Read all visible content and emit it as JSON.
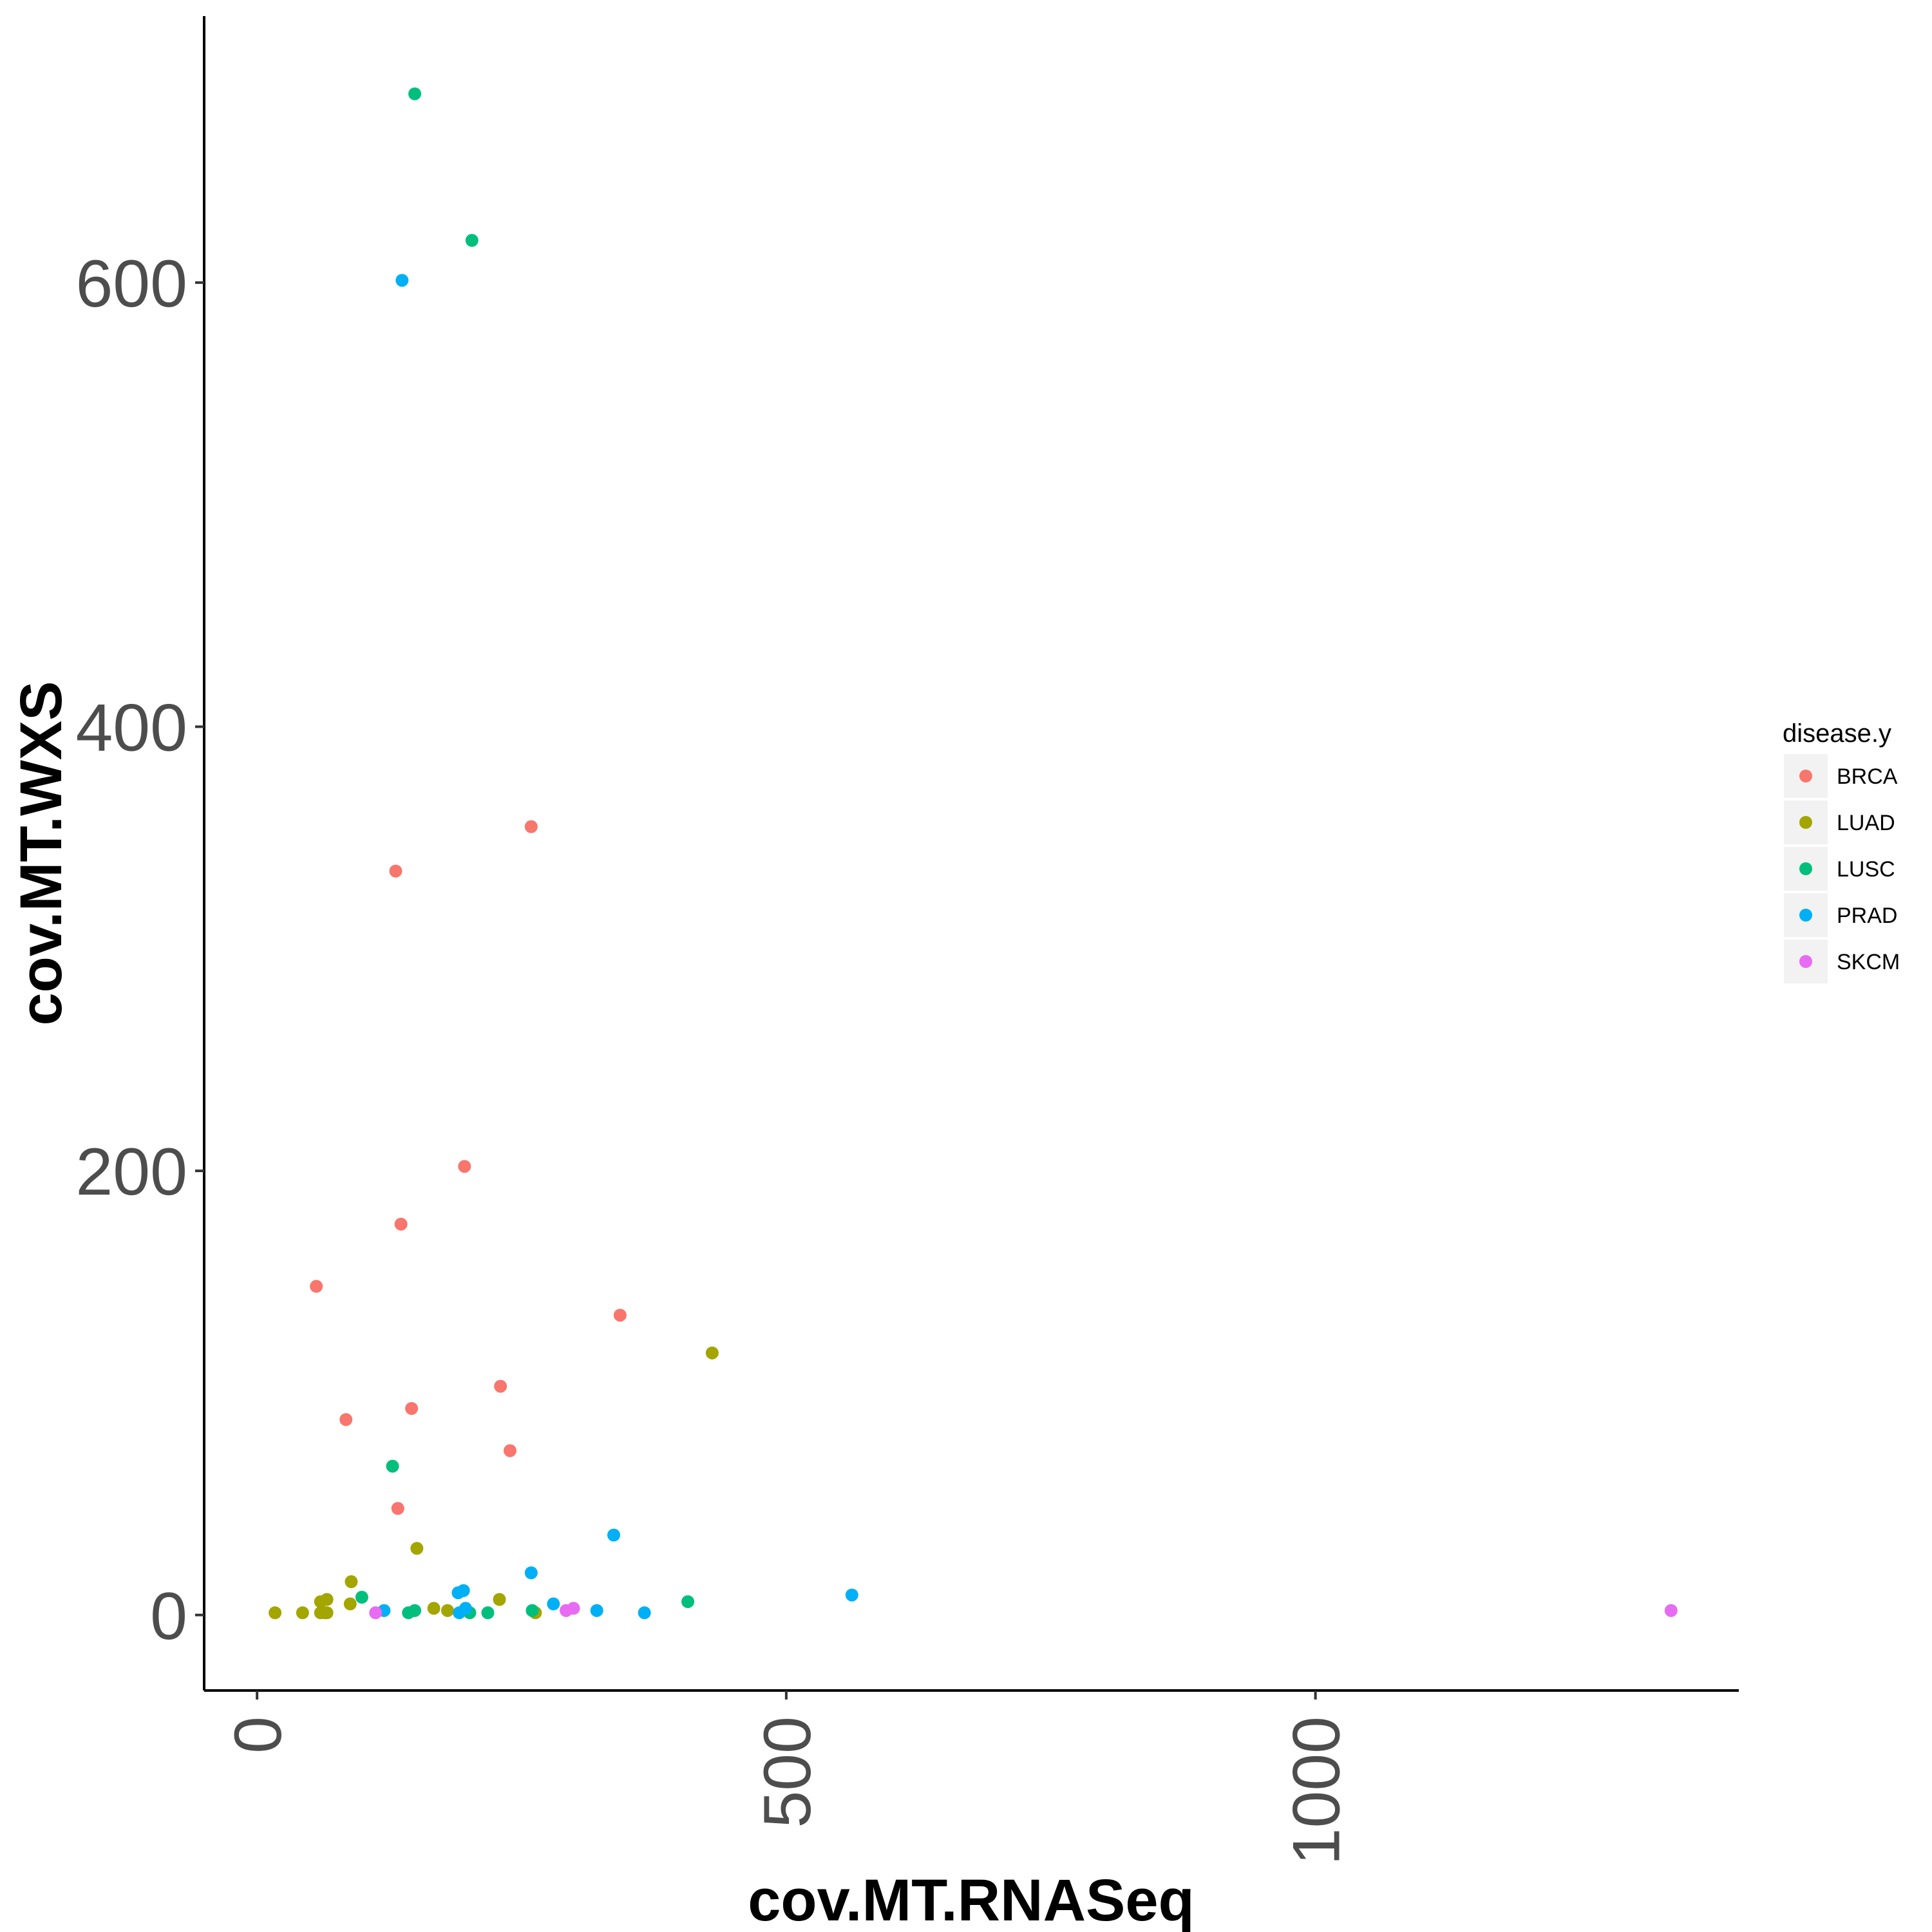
{
  "chart_data": {
    "type": "scatter",
    "xlabel": "cov.MT.RNASeq",
    "ylabel": "cov.MT.WXS",
    "xlim": [
      -50,
      1400
    ],
    "ylim": [
      -34,
      720
    ],
    "x_ticks": [
      0,
      500,
      1000
    ],
    "x_tick_labels": [
      "0",
      "500",
      "1000"
    ],
    "y_ticks": [
      0,
      200,
      400,
      600
    ],
    "y_tick_labels": [
      "0",
      "200",
      "400",
      "600"
    ],
    "grid": false,
    "legend": {
      "title": "disease.y",
      "placement": "right",
      "entries": [
        {
          "label": "BRCA",
          "color": "#F8766D"
        },
        {
          "label": "LUAD",
          "color": "#A3A500"
        },
        {
          "label": "LUSC",
          "color": "#00BF7D"
        },
        {
          "label": "PRAD",
          "color": "#00B0F6"
        },
        {
          "label": "SKCM",
          "color": "#E76BF3"
        }
      ]
    },
    "series": [
      {
        "name": "BRCA",
        "color": "#F8766D",
        "points": [
          [
            56,
            148
          ],
          [
            84,
            88
          ],
          [
            131,
            335
          ],
          [
            133,
            48
          ],
          [
            136,
            176
          ],
          [
            146,
            93
          ],
          [
            196,
            202
          ],
          [
            230,
            103
          ],
          [
            239,
            74
          ],
          [
            259,
            355
          ],
          [
            343,
            135
          ]
        ]
      },
      {
        "name": "LUAD",
        "color": "#A3A500",
        "points": [
          [
            17,
            1
          ],
          [
            43,
            1
          ],
          [
            60,
            1
          ],
          [
            64,
            1
          ],
          [
            66,
            1
          ],
          [
            60,
            6
          ],
          [
            66,
            7
          ],
          [
            88,
            5
          ],
          [
            89,
            15
          ],
          [
            151,
            30
          ],
          [
            167,
            3
          ],
          [
            180,
            2
          ],
          [
            229,
            7
          ],
          [
            263,
            1
          ],
          [
            430,
            118
          ]
        ]
      },
      {
        "name": "LUSC",
        "color": "#00BF7D",
        "points": [
          [
            149,
            685
          ],
          [
            203,
            619
          ],
          [
            128,
            67
          ],
          [
            99,
            8
          ],
          [
            143,
            1
          ],
          [
            149,
            2
          ],
          [
            201,
            1
          ],
          [
            218,
            1
          ],
          [
            260,
            2
          ],
          [
            407,
            6
          ]
        ]
      },
      {
        "name": "PRAD",
        "color": "#00B0F6",
        "points": [
          [
            137,
            601
          ],
          [
            337,
            36
          ],
          [
            259,
            19
          ],
          [
            562,
            9
          ],
          [
            190,
            10
          ],
          [
            195,
            11
          ],
          [
            120,
            2
          ],
          [
            191,
            1
          ],
          [
            197,
            3
          ],
          [
            280,
            5
          ],
          [
            321,
            2
          ],
          [
            366,
            1
          ]
        ]
      },
      {
        "name": "SKCM",
        "color": "#E76BF3",
        "points": [
          [
            112,
            1
          ],
          [
            292,
            2
          ],
          [
            299,
            3
          ],
          [
            1336,
            2
          ]
        ]
      }
    ]
  }
}
